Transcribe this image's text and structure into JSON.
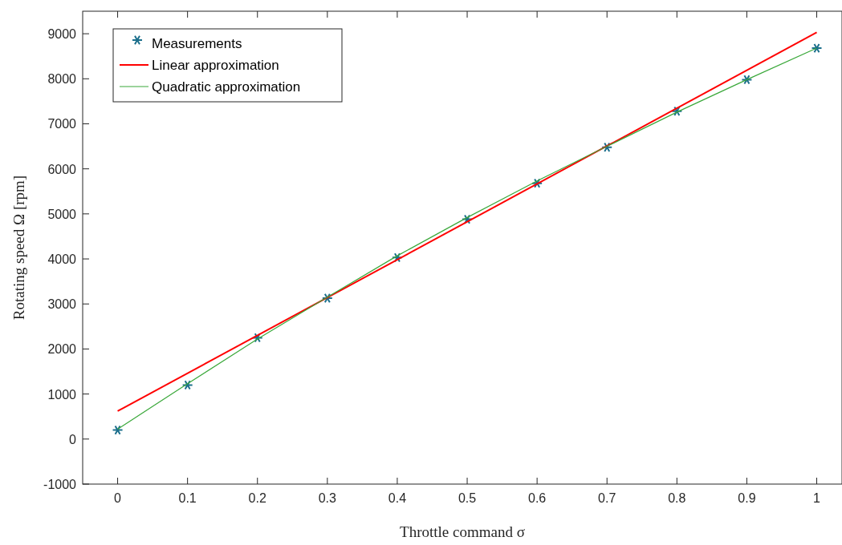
{
  "chart_data": {
    "type": "line",
    "xlabel": "Throttle command σ",
    "ylabel": "Rotating speed Ω [rpm]",
    "xlim": [
      -0.05,
      1.035
    ],
    "ylim": [
      -1000,
      9500
    ],
    "xticks": [
      0,
      0.1,
      0.2,
      0.3,
      0.4,
      0.5,
      0.6,
      0.7,
      0.8,
      0.9,
      1
    ],
    "yticks": [
      -1000,
      0,
      1000,
      2000,
      3000,
      4000,
      5000,
      6000,
      7000,
      8000,
      9000
    ],
    "grid": false,
    "legend": "top left",
    "series": [
      {
        "name": "Measurements",
        "type": "scatter",
        "marker": "cross",
        "color": "#1b6f8c",
        "x": [
          0,
          0.1,
          0.2,
          0.3,
          0.4,
          0.5,
          0.6,
          0.7,
          0.8,
          0.9,
          1
        ],
        "values": [
          200,
          1200,
          2250,
          3130,
          4030,
          4880,
          5680,
          6480,
          7280,
          7980,
          8680
        ]
      },
      {
        "name": "Linear approximation",
        "marker": "none",
        "color": "#ff0000",
        "x": [
          0,
          1
        ],
        "values": [
          620,
          9030
        ]
      },
      {
        "name": "Quadratic approximation",
        "marker": "none",
        "color": "#3aa83a",
        "x": [
          0,
          0.1,
          0.2,
          0.3,
          0.4,
          0.5,
          0.6,
          0.7,
          0.8,
          0.9,
          1
        ],
        "values": [
          220,
          1230,
          2220,
          3150,
          4070,
          4920,
          5730,
          6500,
          7260,
          7980,
          8680
        ]
      }
    ]
  }
}
